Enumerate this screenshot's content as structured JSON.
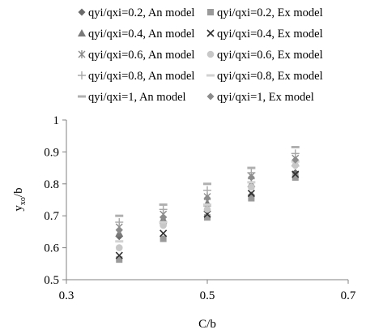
{
  "chart_data": {
    "type": "scatter",
    "xlabel": "C/b",
    "ylabel_main": "y",
    "ylabel_sub": "xo",
    "ylabel_tail": "/b",
    "xlim": [
      0.3,
      0.7
    ],
    "ylim": [
      0.5,
      1.0
    ],
    "xticks": [
      "0.3",
      "0.5",
      "0.7"
    ],
    "yticks": [
      "0.5",
      "0.6",
      "0.7",
      "0.8",
      "0.9",
      "1"
    ],
    "grid": false,
    "legend_position": "top",
    "x": [
      0.375,
      0.4375,
      0.5,
      0.5625,
      0.625
    ],
    "series": [
      {
        "name": "qyi/qxi=0.2, An model",
        "marker": "diamond",
        "color": "#6b6b6b",
        "values": [
          0.635,
          0.675,
          0.715,
          0.765,
          0.835
        ]
      },
      {
        "name": "qyi/qxi=0.2, Ex model",
        "marker": "square",
        "color": "#9a9a9a",
        "values": [
          0.563,
          0.628,
          0.695,
          0.755,
          0.82
        ]
      },
      {
        "name": "qyi/qxi=0.4, An model",
        "marker": "triangle",
        "color": "#7a7a7a",
        "values": [
          0.645,
          0.69,
          0.74,
          0.8,
          0.865
        ]
      },
      {
        "name": "qyi/qxi=0.4, Ex model",
        "marker": "x",
        "color": "#303030",
        "values": [
          0.576,
          0.645,
          0.705,
          0.77,
          0.83
        ]
      },
      {
        "name": "qyi/qxi=0.6, An model",
        "marker": "asterisk",
        "color": "#8a8a8a",
        "values": [
          0.665,
          0.705,
          0.76,
          0.825,
          0.88
        ]
      },
      {
        "name": "qyi/qxi=0.6, Ex model",
        "marker": "circle",
        "color": "#c8c8c8",
        "values": [
          0.6,
          0.67,
          0.72,
          0.79,
          0.858
        ]
      },
      {
        "name": "qyi/qxi=0.8, An model",
        "marker": "plus",
        "color": "#a8a8a8",
        "values": [
          0.68,
          0.72,
          0.78,
          0.835,
          0.895
        ]
      },
      {
        "name": "qyi/qxi=0.8, Ex model",
        "marker": "dash",
        "color": "#d2d2d2",
        "values": [
          0.62,
          0.68,
          0.735,
          0.805,
          0.87
        ]
      },
      {
        "name": "qyi/qxi=1, An model",
        "marker": "dash",
        "color": "#b0b0b0",
        "values": [
          0.7,
          0.735,
          0.8,
          0.85,
          0.915
        ]
      },
      {
        "name": "qyi/qxi=1, Ex model",
        "marker": "diamond",
        "color": "#8c8c8c",
        "values": [
          0.655,
          0.695,
          0.755,
          0.82,
          0.875
        ]
      }
    ]
  }
}
